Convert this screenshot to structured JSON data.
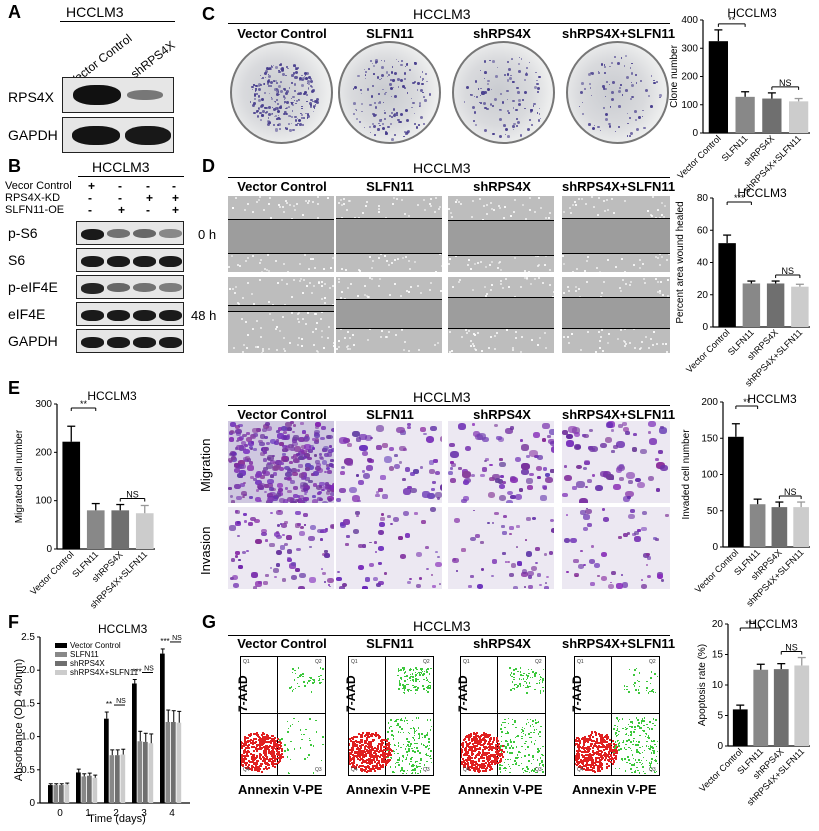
{
  "panelA": {
    "letter": "A",
    "cell_line": "HCCLM3",
    "lanes": [
      "Vector Control",
      "shRPS4X"
    ],
    "rows": [
      "RPS4X",
      "GAPDH"
    ]
  },
  "panelB": {
    "letter": "B",
    "cell_line": "HCCLM3",
    "conditions": [
      {
        "label": "Vecor Control",
        "signs": [
          "+",
          "-",
          "-",
          "-"
        ]
      },
      {
        "label": "RPS4X-KD",
        "signs": [
          "-",
          "-",
          "+",
          "+"
        ]
      },
      {
        "label": "SLFN11-OE",
        "signs": [
          "-",
          "+",
          "-",
          "+"
        ]
      }
    ],
    "rows": [
      "p-S6",
      "S6",
      "p-eIF4E",
      "eIF4E",
      "GAPDH"
    ]
  },
  "groups": [
    "Vector Control",
    "SLFN11",
    "shRPS4X",
    "shRPS4X+SLFN11"
  ],
  "panelC": {
    "letter": "C",
    "cell_line": "HCCLM3"
  },
  "panelD": {
    "letter": "D",
    "cell_line": "HCCLM3",
    "times": [
      "0 h",
      "48 h"
    ]
  },
  "panelE": {
    "letter": "E",
    "cell_line": "HCCLM3",
    "rows": [
      "Migration",
      "Invasion"
    ]
  },
  "panelF": {
    "letter": "F"
  },
  "panelG": {
    "letter": "G",
    "cell_line": "HCCLM3",
    "xlabel": "Annexin V-PE",
    "ylabel": "7-AAD",
    "quadrants": [
      "Q1",
      "Q2",
      "Q3",
      "Q4"
    ]
  },
  "chart_data": [
    {
      "id": "C",
      "type": "bar",
      "title": "HCCLM3",
      "ylabel": "Clone number",
      "ylim": [
        0,
        400
      ],
      "yticks": [
        0,
        100,
        200,
        300,
        400
      ],
      "categories": [
        "Vector Control",
        "SLFN11",
        "shRPS4X",
        "shRPS4X+SLFN11"
      ],
      "values": [
        325,
        128,
        122,
        112
      ],
      "errors": [
        40,
        18,
        20,
        10
      ],
      "colors": [
        "#000000",
        "#888888",
        "#6f6f6f",
        "#cccccc"
      ],
      "sig": [
        {
          "from": 0,
          "to": 1,
          "label": "**"
        },
        {
          "from": 2,
          "to": 3,
          "label": "NS"
        }
      ]
    },
    {
      "id": "D",
      "type": "bar",
      "title": "HCCLM3",
      "ylabel": "Percent area wound healed",
      "ylim": [
        0,
        80
      ],
      "yticks": [
        0,
        20,
        40,
        60,
        80
      ],
      "categories": [
        "Vector Control",
        "SLFN11",
        "shRPS4X",
        "shRPS4X+SLFN11"
      ],
      "values": [
        52,
        27,
        27,
        25
      ],
      "errors": [
        5,
        1.5,
        1.5,
        1.5
      ],
      "colors": [
        "#000000",
        "#888888",
        "#6f6f6f",
        "#cccccc"
      ],
      "sig": [
        {
          "from": 0,
          "to": 1,
          "label": "***"
        },
        {
          "from": 2,
          "to": 3,
          "label": "NS"
        }
      ]
    },
    {
      "id": "E-migration",
      "type": "bar",
      "title": "HCCLM3",
      "ylabel": "Migrated cell number",
      "ylim": [
        0,
        300
      ],
      "yticks": [
        0,
        100,
        200,
        300
      ],
      "categories": [
        "Vector Control",
        "SLFN11",
        "shRPS4X",
        "shRPS4X+SLFN11"
      ],
      "values": [
        222,
        80,
        80,
        74
      ],
      "errors": [
        32,
        14,
        12,
        16
      ],
      "colors": [
        "#000000",
        "#888888",
        "#6f6f6f",
        "#cccccc"
      ],
      "sig": [
        {
          "from": 0,
          "to": 1,
          "label": "**"
        },
        {
          "from": 2,
          "to": 3,
          "label": "NS"
        }
      ]
    },
    {
      "id": "E-invasion",
      "type": "bar",
      "title": "HCCLM3",
      "ylabel": "Invaded cell number",
      "ylim": [
        0,
        200
      ],
      "yticks": [
        0,
        50,
        100,
        150,
        200
      ],
      "categories": [
        "Vector Control",
        "SLFN11",
        "shRPS4X",
        "shRPS4X+SLFN11"
      ],
      "values": [
        152,
        59,
        55,
        55
      ],
      "errors": [
        18,
        7,
        7,
        7
      ],
      "colors": [
        "#000000",
        "#888888",
        "#6f6f6f",
        "#cccccc"
      ],
      "sig": [
        {
          "from": 0,
          "to": 1,
          "label": "**"
        },
        {
          "from": 2,
          "to": 3,
          "label": "NS"
        }
      ]
    },
    {
      "id": "F",
      "type": "bar",
      "title": "HCCLM3",
      "xlabel": "Time (days)",
      "ylabel": "Absorbance (OD 450nm)",
      "ylim": [
        0,
        2.5
      ],
      "yticks": [
        "0",
        "0.5",
        "1.0",
        "1.5",
        "2.0",
        "2.5"
      ],
      "x": [
        0,
        1,
        2,
        3,
        4
      ],
      "series": [
        {
          "name": "Vector Control",
          "values": [
            0.27,
            0.46,
            1.27,
            1.8,
            2.25
          ],
          "errors": [
            0.02,
            0.05,
            0.1,
            0.06,
            0.07
          ],
          "color": "#000000"
        },
        {
          "name": "SLFN11",
          "values": [
            0.27,
            0.4,
            0.72,
            0.93,
            1.22
          ],
          "errors": [
            0.02,
            0.04,
            0.08,
            0.15,
            0.18
          ],
          "color": "#888888"
        },
        {
          "name": "shRPS4X",
          "values": [
            0.27,
            0.41,
            0.72,
            0.92,
            1.22
          ],
          "errors": [
            0.02,
            0.04,
            0.08,
            0.13,
            0.17
          ],
          "color": "#6f6f6f"
        },
        {
          "name": "shRPS4X+SLFN11",
          "values": [
            0.28,
            0.38,
            0.73,
            0.9,
            1.21
          ],
          "errors": [
            0.02,
            0.04,
            0.08,
            0.14,
            0.17
          ],
          "color": "#cccccc"
        }
      ],
      "sig": [
        {
          "day": 2,
          "labels": [
            "**",
            "NS"
          ]
        },
        {
          "day": 3,
          "labels": [
            "***",
            "NS"
          ]
        },
        {
          "day": 4,
          "labels": [
            "***",
            "NS"
          ]
        }
      ]
    },
    {
      "id": "G",
      "type": "bar",
      "title": "HCCLM3",
      "ylabel": "Apoptosis rate (%)",
      "ylim": [
        0,
        20
      ],
      "yticks": [
        0,
        5,
        10,
        15,
        20
      ],
      "categories": [
        "Vector Control",
        "SLFN11",
        "shRPS4X",
        "shRPS4X+SLFN11"
      ],
      "values": [
        6,
        12.5,
        12.6,
        13.2
      ],
      "errors": [
        0.7,
        0.9,
        0.9,
        1.3
      ],
      "colors": [
        "#000000",
        "#888888",
        "#6f6f6f",
        "#cccccc"
      ],
      "sig": [
        {
          "from": 0,
          "to": 1,
          "label": "***"
        },
        {
          "from": 2,
          "to": 3,
          "label": "NS"
        }
      ]
    }
  ]
}
